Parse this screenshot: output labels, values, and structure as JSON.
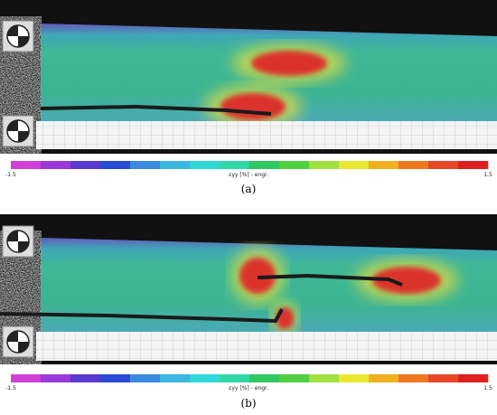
{
  "panels": [
    {
      "label": "(a)",
      "colorbar": {
        "min": -1.5,
        "max": 1.5,
        "title": "εyy [%] - engr."
      }
    },
    {
      "label": "(b)",
      "colorbar": {
        "min": -1.5,
        "max": 1.5,
        "title": "εyy [%] - engr."
      }
    }
  ]
}
